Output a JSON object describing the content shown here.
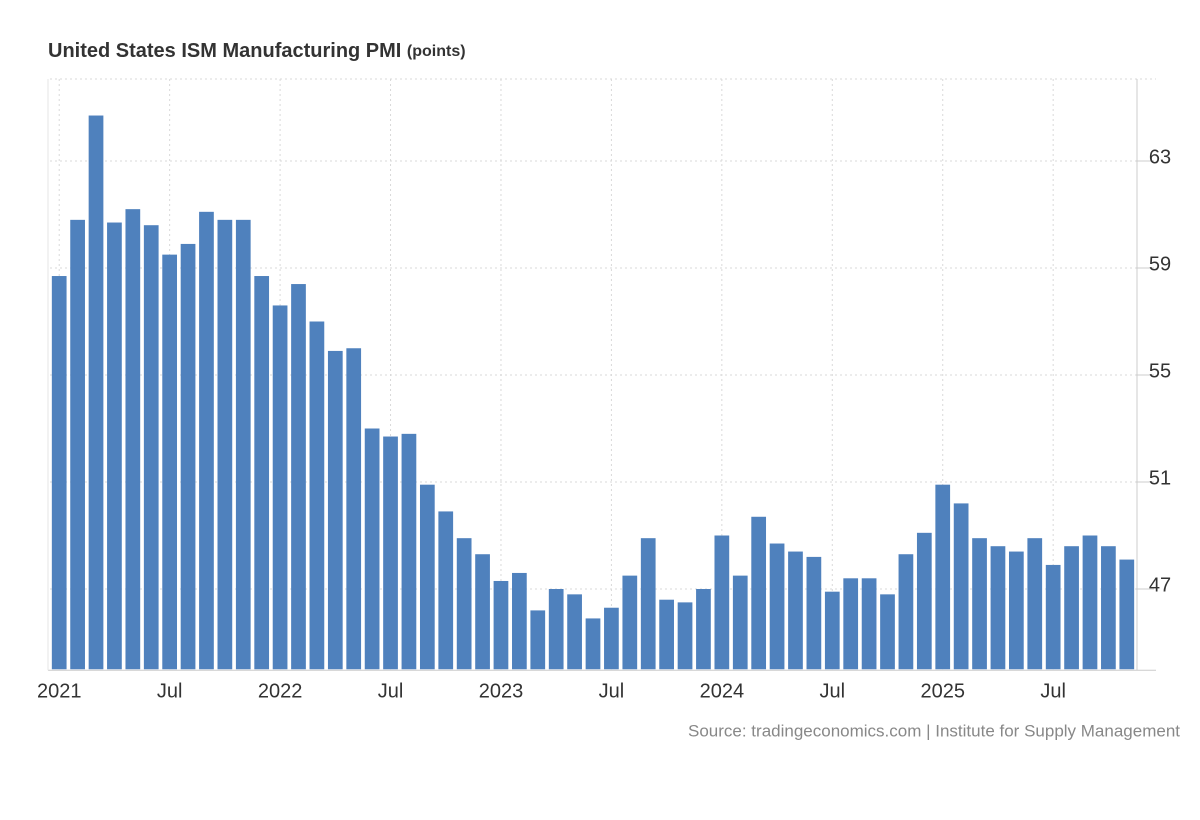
{
  "chart_data": {
    "type": "bar",
    "title": "United States ISM Manufacturing PMI",
    "unit": "(points)",
    "source": "Source: tradingeconomics.com | Institute for Supply Management",
    "categories": [
      "2021",
      null,
      null,
      null,
      null,
      null,
      "Jul",
      null,
      null,
      null,
      null,
      null,
      "2022",
      null,
      null,
      null,
      null,
      null,
      "Jul",
      null,
      null,
      null,
      null,
      null,
      "2023",
      null,
      null,
      null,
      null,
      null,
      "Jul",
      null,
      null,
      null,
      null,
      null,
      "2024",
      null,
      null,
      null,
      null,
      null,
      "Jul",
      null,
      null,
      null,
      null,
      null,
      "2025",
      null,
      null,
      null,
      null,
      null,
      "Jul",
      null,
      null,
      null,
      null
    ],
    "values": [
      58.7,
      60.8,
      64.7,
      60.7,
      61.2,
      60.6,
      59.5,
      59.9,
      61.1,
      60.8,
      60.8,
      58.7,
      57.6,
      58.4,
      57.0,
      55.9,
      56.0,
      53.0,
      52.7,
      52.8,
      50.9,
      49.9,
      48.9,
      48.3,
      47.3,
      47.6,
      46.2,
      47.0,
      46.8,
      45.9,
      46.3,
      47.5,
      48.9,
      46.6,
      46.5,
      47.0,
      49.0,
      47.5,
      49.7,
      48.7,
      48.4,
      48.2,
      46.9,
      47.4,
      47.4,
      46.8,
      48.3,
      49.1,
      50.9,
      50.2,
      48.9,
      48.6,
      48.4,
      48.9,
      47.9,
      48.6,
      49.0,
      48.6,
      48.1
    ],
    "color": "#4f81bd",
    "ylim": [
      44,
      66
    ],
    "yticks": [
      47,
      51,
      55,
      59,
      63
    ],
    "grid": true
  }
}
